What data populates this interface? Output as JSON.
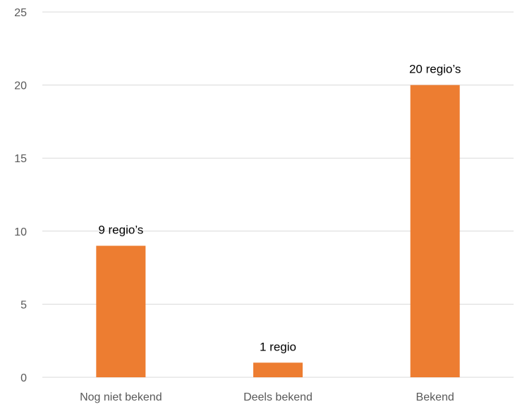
{
  "chart_data": {
    "type": "bar",
    "categories": [
      "Nog niet bekend",
      "Deels bekend",
      "Bekend"
    ],
    "values": [
      9,
      1,
      20
    ],
    "data_labels": [
      "9 regio’s",
      "1 regio",
      "20 regio’s"
    ],
    "title": "",
    "xlabel": "",
    "ylabel": "",
    "ylim": [
      0,
      25
    ],
    "yticks": [
      0,
      5,
      10,
      15,
      20,
      25
    ],
    "grid": true,
    "legend": "none",
    "bar_color": "#ED7D31"
  }
}
